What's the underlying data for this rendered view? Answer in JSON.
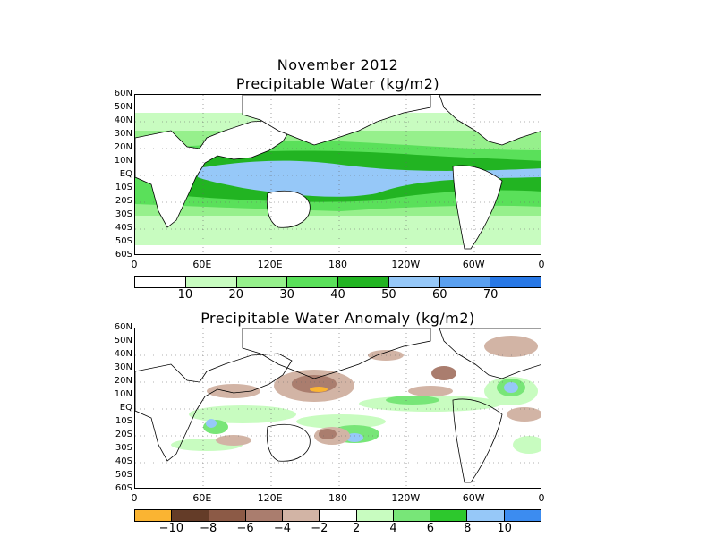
{
  "top_map": {
    "title_line1": "November 2012",
    "title_line2": "Precipitable Water (kg/m2)",
    "lat_labels": [
      "60N",
      "50N",
      "40N",
      "30N",
      "20N",
      "10N",
      "EQ",
      "10S",
      "20S",
      "30S",
      "40S",
      "50S",
      "60S"
    ],
    "lon_labels": [
      "0",
      "60E",
      "120E",
      "180",
      "120W",
      "60W",
      "0"
    ],
    "colorbar_colors": [
      "#ffffff",
      "#c8fcc0",
      "#96f08c",
      "#5ae05a",
      "#22b422",
      "#96c8f8",
      "#5aa0f0",
      "#2878e6"
    ],
    "colorbar_labels": [
      "10",
      "20",
      "30",
      "40",
      "50",
      "60",
      "70"
    ]
  },
  "bottom_map": {
    "title": "Precipitable Water Anomaly (kg/m2)",
    "lat_labels": [
      "60N",
      "50N",
      "40N",
      "30N",
      "20N",
      "10N",
      "EQ",
      "10S",
      "20S",
      "30S",
      "40S",
      "50S",
      "60S"
    ],
    "lon_labels": [
      "0",
      "60E",
      "120E",
      "180",
      "120W",
      "60W",
      "0"
    ],
    "colorbar_colors": [
      "#fab432",
      "#643c28",
      "#8c5a46",
      "#aa7d6e",
      "#d2b4a5",
      "#ffffff",
      "#c8fcc0",
      "#78e678",
      "#2dc82d",
      "#96c8f8",
      "#3c8cf0"
    ],
    "colorbar_labels": [
      "−10",
      "−8",
      "−6",
      "−4",
      "−2",
      "2",
      "4",
      "6",
      "8",
      "10"
    ]
  }
}
